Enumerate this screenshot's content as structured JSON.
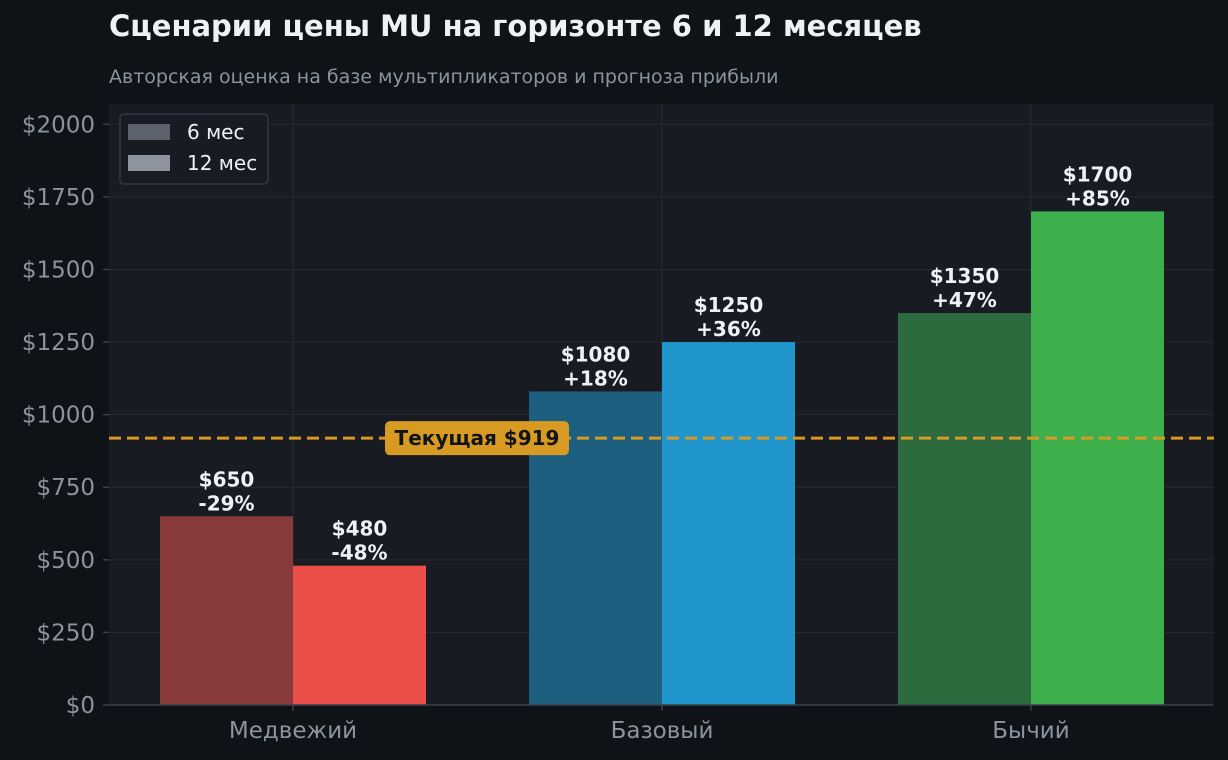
{
  "title": "Сценарии цены MU на горизонте 6 и 12 месяцев",
  "subtitle": "Авторская оценка на базе мультипликаторов и прогноза прибыли",
  "colors": {
    "background": "#0f1317",
    "plot_background": "#181b22",
    "reference_line": "#d79a22",
    "bear_6m": "#893a3b",
    "bear_12m": "#ea5049",
    "base_6m": "#1c5f7f",
    "base_12m": "#2096cc",
    "bull_6m": "#2b6b3d",
    "bull_12m": "#3daf4d",
    "legend_6m": "#5d636e",
    "legend_12m": "#8d949f"
  },
  "chart_data": {
    "type": "bar",
    "categories": [
      "Медвежий",
      "Базовый",
      "Бычий"
    ],
    "series": [
      {
        "name": "6 мес",
        "values": [
          650,
          1080,
          1350
        ],
        "labels": [
          "$650\n-29%",
          "$1080\n+18%",
          "$1350\n+47%"
        ]
      },
      {
        "name": "12 мес",
        "values": [
          480,
          1250,
          1700
        ],
        "labels": [
          "$480\n-48%",
          "$1250\n+36%",
          "$1700\n+85%"
        ]
      }
    ],
    "ylim": [
      0,
      2070
    ],
    "yticks": [
      0,
      250,
      500,
      750,
      1000,
      1250,
      1500,
      1750,
      2000
    ],
    "ytick_labels": [
      "$0",
      "$250",
      "$500",
      "$750",
      "$1000",
      "$1250",
      "$1500",
      "$1750",
      "$2000"
    ],
    "reference_line": {
      "value": 919,
      "label": "Текущая $919",
      "style": "dashed"
    },
    "legend": {
      "placement": "top-left",
      "entries": [
        "6 мес",
        "12 мес"
      ]
    },
    "grid": true
  }
}
